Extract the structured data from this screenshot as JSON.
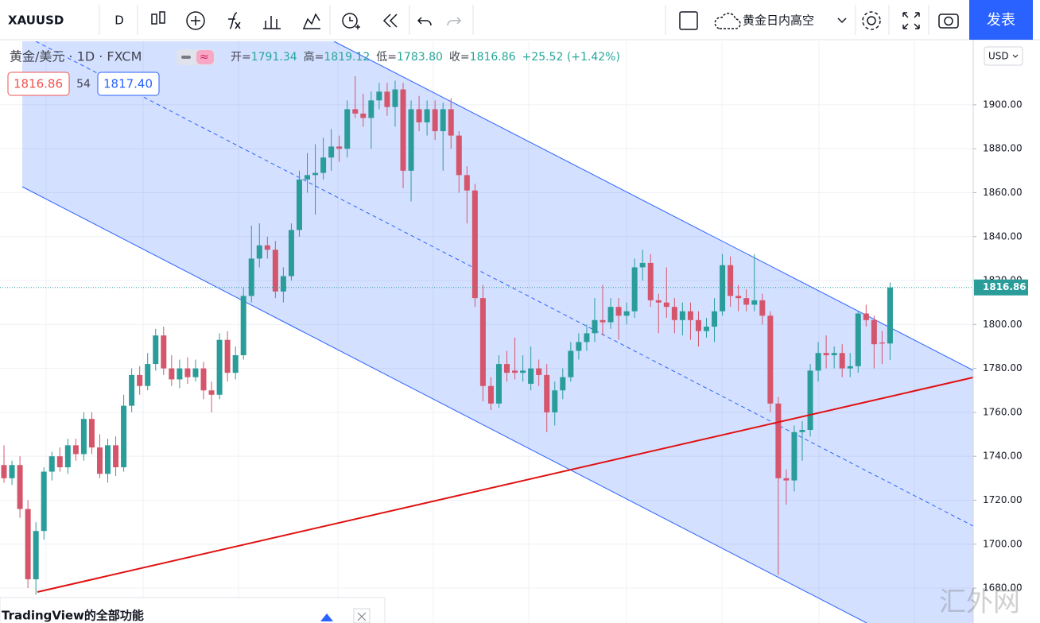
{
  "toolbar": {
    "symbol": "XAUUSD",
    "interval": "D",
    "layout_name": "黄金日内高空",
    "publish": "发表"
  },
  "legend": {
    "symbol": "黄金/美元 · 1D · FXCM",
    "items": [
      {
        "label": "开=",
        "value": "1791.34"
      },
      {
        "label": "高=",
        "value": "1819.12"
      },
      {
        "label": "低=",
        "value": "1783.80"
      },
      {
        "label": "收=",
        "value": "1816.86"
      }
    ],
    "change": "+25.52 (+1.42%)",
    "bid": "1816.86",
    "spread": "54",
    "ask": "1817.40"
  },
  "currency": "USD",
  "banner": "TradingView的全部功能",
  "watermark": "汇外网",
  "chart_data": {
    "type": "candlestick",
    "up_color": "#2a9d9a",
    "down_color": "#d5566c",
    "ylim": [
      1664.1,
      1928.9
    ],
    "yticks": [
      {
        "value": 1680,
        "label": "1680.00"
      },
      {
        "value": 1700,
        "label": "1700.00"
      },
      {
        "value": 1720,
        "label": "1720.00"
      },
      {
        "value": 1740,
        "label": "1740.00"
      },
      {
        "value": 1760,
        "label": "1760.00"
      },
      {
        "value": 1780,
        "label": "1780.00"
      },
      {
        "value": 1800,
        "label": "1800.00"
      },
      {
        "value": 1820,
        "label": "1820.00"
      },
      {
        "value": 1840,
        "label": "1840.00"
      },
      {
        "value": 1860,
        "label": "1860.00"
      },
      {
        "value": 1880,
        "label": "1880.00"
      },
      {
        "value": 1900,
        "label": "1900.00"
      }
    ],
    "grid": true,
    "ohlc": [
      [
        1736,
        1745,
        1728,
        1730
      ],
      [
        1730,
        1738,
        1727,
        1736
      ],
      [
        1736,
        1740,
        1712,
        1716
      ],
      [
        1716,
        1720,
        1680,
        1684
      ],
      [
        1684,
        1710,
        1677,
        1706
      ],
      [
        1706,
        1735,
        1702,
        1733
      ],
      [
        1733,
        1742,
        1729,
        1740
      ],
      [
        1740,
        1744,
        1733,
        1735
      ],
      [
        1735,
        1748,
        1732,
        1745
      ],
      [
        1745,
        1748,
        1738,
        1741
      ],
      [
        1741,
        1760,
        1738,
        1757
      ],
      [
        1757,
        1760,
        1741,
        1744
      ],
      [
        1744,
        1750,
        1730,
        1732
      ],
      [
        1732,
        1748,
        1728,
        1745
      ],
      [
        1745,
        1749,
        1731,
        1735
      ],
      [
        1735,
        1768,
        1733,
        1763
      ],
      [
        1763,
        1780,
        1760,
        1777
      ],
      [
        1777,
        1781,
        1768,
        1772
      ],
      [
        1772,
        1787,
        1770,
        1782
      ],
      [
        1782,
        1798,
        1779,
        1795
      ],
      [
        1795,
        1799,
        1777,
        1780
      ],
      [
        1780,
        1786,
        1772,
        1775
      ],
      [
        1775,
        1784,
        1771,
        1780
      ],
      [
        1780,
        1785,
        1773,
        1776
      ],
      [
        1776,
        1784,
        1774,
        1780
      ],
      [
        1780,
        1783,
        1766,
        1770
      ],
      [
        1770,
        1774,
        1760,
        1768
      ],
      [
        1768,
        1796,
        1766,
        1793
      ],
      [
        1793,
        1797,
        1774,
        1778
      ],
      [
        1778,
        1790,
        1775,
        1786
      ],
      [
        1786,
        1817,
        1784,
        1813
      ],
      [
        1813,
        1845,
        1810,
        1830
      ],
      [
        1830,
        1846,
        1826,
        1836
      ],
      [
        1836,
        1840,
        1830,
        1834
      ],
      [
        1834,
        1838,
        1812,
        1815
      ],
      [
        1815,
        1826,
        1810,
        1822
      ],
      [
        1822,
        1846,
        1820,
        1843
      ],
      [
        1843,
        1870,
        1840,
        1866
      ],
      [
        1866,
        1878,
        1860,
        1868
      ],
      [
        1868,
        1882,
        1850,
        1869
      ],
      [
        1869,
        1885,
        1866,
        1876
      ],
      [
        1876,
        1889,
        1870,
        1881
      ],
      [
        1881,
        1886,
        1874,
        1880
      ],
      [
        1880,
        1902,
        1876,
        1898
      ],
      [
        1898,
        1913,
        1894,
        1896
      ],
      [
        1896,
        1905,
        1890,
        1894
      ],
      [
        1894,
        1906,
        1880,
        1902
      ],
      [
        1902,
        1910,
        1898,
        1906
      ],
      [
        1906,
        1910,
        1895,
        1899
      ],
      [
        1899,
        1911,
        1890,
        1907
      ],
      [
        1907,
        1910,
        1862,
        1870
      ],
      [
        1870,
        1902,
        1856,
        1898
      ],
      [
        1898,
        1904,
        1888,
        1892
      ],
      [
        1892,
        1902,
        1886,
        1898
      ],
      [
        1898,
        1902,
        1884,
        1888
      ],
      [
        1888,
        1901,
        1870,
        1898
      ],
      [
        1898,
        1903,
        1880,
        1886
      ],
      [
        1886,
        1888,
        1860,
        1868
      ],
      [
        1868,
        1872,
        1846,
        1861
      ],
      [
        1861,
        1864,
        1808,
        1812
      ],
      [
        1812,
        1818,
        1765,
        1772
      ],
      [
        1772,
        1776,
        1761,
        1764
      ],
      [
        1764,
        1786,
        1762,
        1782
      ],
      [
        1782,
        1788,
        1774,
        1778
      ],
      [
        1779,
        1794,
        1775,
        1778
      ],
      [
        1778,
        1786,
        1774,
        1779
      ],
      [
        1773,
        1790,
        1770,
        1780
      ],
      [
        1780,
        1784,
        1772,
        1777
      ],
      [
        1777,
        1782,
        1751,
        1760
      ],
      [
        1760,
        1774,
        1754,
        1770
      ],
      [
        1770,
        1780,
        1766,
        1776
      ],
      [
        1776,
        1792,
        1774,
        1788
      ],
      [
        1788,
        1796,
        1784,
        1792
      ],
      [
        1792,
        1800,
        1788,
        1796
      ],
      [
        1796,
        1812,
        1792,
        1802
      ],
      [
        1802,
        1818,
        1795,
        1801
      ],
      [
        1801,
        1812,
        1798,
        1808
      ],
      [
        1808,
        1812,
        1793,
        1804
      ],
      [
        1804,
        1810,
        1800,
        1806
      ],
      [
        1806,
        1830,
        1803,
        1826
      ],
      [
        1826,
        1834,
        1820,
        1828
      ],
      [
        1828,
        1832,
        1808,
        1811
      ],
      [
        1811,
        1814,
        1796,
        1810
      ],
      [
        1810,
        1826,
        1803,
        1808
      ],
      [
        1808,
        1812,
        1796,
        1802
      ],
      [
        1802,
        1810,
        1795,
        1806
      ],
      [
        1806,
        1810,
        1793,
        1802
      ],
      [
        1802,
        1806,
        1790,
        1797
      ],
      [
        1797,
        1803,
        1794,
        1799
      ],
      [
        1799,
        1812,
        1792,
        1806
      ],
      [
        1806,
        1832,
        1804,
        1827
      ],
      [
        1827,
        1831,
        1808,
        1813
      ],
      [
        1813,
        1818,
        1806,
        1812
      ],
      [
        1812,
        1816,
        1806,
        1809
      ],
      [
        1809,
        1832,
        1806,
        1811
      ],
      [
        1811,
        1814,
        1800,
        1804
      ],
      [
        1804,
        1806,
        1760,
        1764
      ],
      [
        1764,
        1767,
        1686,
        1730
      ],
      [
        1730,
        1734,
        1718,
        1729
      ],
      [
        1729,
        1754,
        1724,
        1751
      ],
      [
        1751,
        1756,
        1738,
        1752
      ],
      [
        1752,
        1782,
        1749,
        1779
      ],
      [
        1779,
        1792,
        1774,
        1787
      ],
      [
        1787,
        1795,
        1780,
        1786
      ],
      [
        1786,
        1790,
        1780,
        1787
      ],
      [
        1787,
        1791,
        1776,
        1780
      ],
      [
        1780,
        1787,
        1776,
        1781
      ],
      [
        1781,
        1806,
        1778,
        1805
      ],
      [
        1805,
        1809,
        1799,
        1802
      ],
      [
        1802,
        1804,
        1780,
        1791
      ],
      [
        1791.8,
        1797,
        1782,
        1791.34
      ],
      [
        1791.34,
        1819.12,
        1783.8,
        1816.86
      ]
    ],
    "last_price_label": "1816.86"
  }
}
